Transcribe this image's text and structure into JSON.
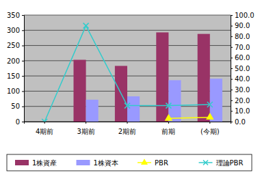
{
  "chart_data": {
    "type": "bar",
    "categories": [
      "4期前",
      "3期前",
      "2期前",
      "前期",
      "(今期)"
    ],
    "series": [
      {
        "name": "1株資産",
        "color": "#993366",
        "type": "bar",
        "values": [
          null,
          203,
          183,
          293,
          288
        ]
      },
      {
        "name": "1株資本",
        "color": "#9999ff",
        "type": "bar",
        "values": [
          null,
          72,
          83,
          136,
          141
        ]
      },
      {
        "name": "PBR",
        "color": "#ffff00",
        "type": "line",
        "marker": "triangle",
        "axis": "y2",
        "values": [
          null,
          null,
          null,
          3,
          4
        ]
      },
      {
        "name": "理論PBR",
        "color": "#33cccc",
        "type": "line",
        "marker": "x",
        "axis": "y2",
        "values": [
          0,
          90,
          15,
          15,
          16
        ]
      }
    ],
    "ylim": [
      0,
      350
    ],
    "yticks": [
      0,
      50,
      100,
      150,
      200,
      250,
      300,
      350
    ],
    "y2lim": [
      0,
      100
    ],
    "y2ticks": [
      {
        "value": 0,
        "label": "0.0"
      },
      {
        "value": 10,
        "label": "10.0"
      },
      {
        "value": 20,
        "label": "20.0"
      },
      {
        "value": 30,
        "label": "30.0"
      },
      {
        "value": 40,
        "label": "40.0"
      },
      {
        "value": 50,
        "label": "50.0"
      },
      {
        "value": 60,
        "label": "60.0"
      },
      {
        "value": 70,
        "label": "70.0"
      },
      {
        "value": 80,
        "label": "80.0"
      },
      {
        "value": 90,
        "label": "90.0"
      },
      {
        "value": 100,
        "label": "100.0"
      }
    ],
    "grid": true,
    "legend": "bottom"
  }
}
